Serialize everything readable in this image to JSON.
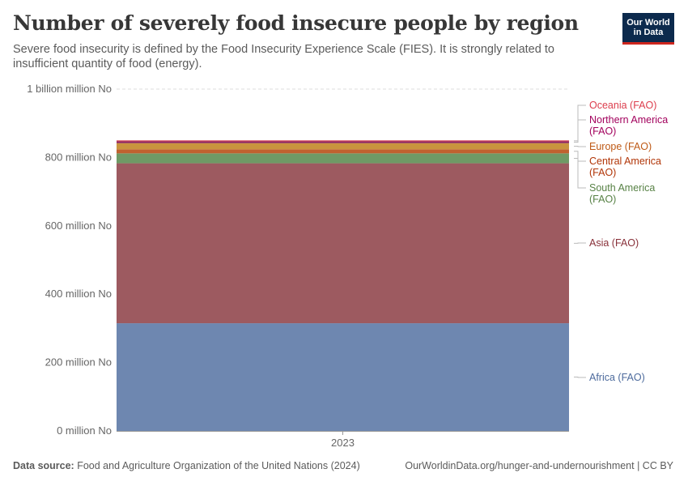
{
  "header": {
    "title": "Number of severely food insecure people by region",
    "subtitle": "Severe food insecurity is defined by the Food Insecurity Experience Scale (FIES). It is strongly related to insufficient quantity of food (energy).",
    "logo_line1": "Our World",
    "logo_line2": "in Data"
  },
  "footer": {
    "source_label": "Data source:",
    "source_text": "Food and Agriculture Organization of the United Nations (2024)",
    "url": "OurWorldinData.org/hunger-and-undernourishment | CC BY"
  },
  "chart_data": {
    "type": "bar",
    "stacked": true,
    "categories": [
      "2023"
    ],
    "unit_label": "million No",
    "ylim": [
      0,
      1000
    ],
    "yticks": [
      0,
      200,
      400,
      600,
      800,
      1000
    ],
    "ytick_labels": [
      "0 million No",
      "200 million No",
      "400 million No",
      "600 million No",
      "800 million No",
      "1 billion million No"
    ],
    "series": [
      {
        "name": "Africa (FAO)",
        "values": [
          315
        ],
        "color": "#6e87b0"
      },
      {
        "name": "Asia (FAO)",
        "values": [
          468
        ],
        "color": "#9d5a60"
      },
      {
        "name": "South America (FAO)",
        "values": [
          29
        ],
        "color": "#6f9a65"
      },
      {
        "name": "Central America (FAO)",
        "values": [
          12
        ],
        "color": "#c0622f"
      },
      {
        "name": "Europe (FAO)",
        "values": [
          18
        ],
        "color": "#c9943e"
      },
      {
        "name": "Northern America (FAO)",
        "values": [
          5
        ],
        "color": "#8b2460"
      },
      {
        "name": "Oceania (FAO)",
        "values": [
          3
        ],
        "color": "#d24556"
      }
    ],
    "label_colors": {
      "Africa (FAO)": "#4c6a9c",
      "Asia (FAO)": "#883039",
      "South America (FAO)": "#578145",
      "Central America (FAO)": "#b13507",
      "Europe (FAO)": "#be5915",
      "Northern America (FAO)": "#a2005c",
      "Oceania (FAO)": "#dc3d4c"
    }
  }
}
